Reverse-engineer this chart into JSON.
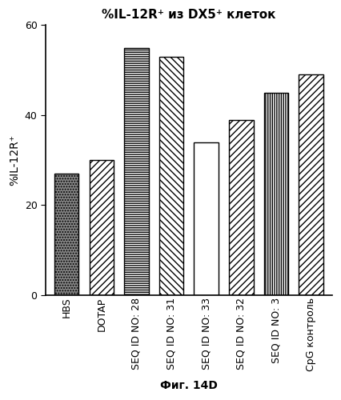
{
  "categories": [
    "HBS",
    "DOTAP",
    "SEQ ID NO: 28",
    "SEQ ID NO: 31",
    "SEQ ID NO: 33",
    "SEQ ID NO: 32",
    "SEQ ID NO: 3",
    "CpG контроль"
  ],
  "values": [
    27,
    30,
    55,
    53,
    34,
    39,
    45,
    49
  ],
  "title": "%IL-12R⁺ из DX5⁺ клеток",
  "ylabel": "%IL-12R⁺",
  "xlabel": "Фиг. 14D",
  "ylim": [
    0,
    60
  ],
  "yticks": [
    0,
    20,
    40,
    60
  ],
  "facecolors": [
    "#999999",
    "white",
    "white",
    "white",
    "white",
    "white",
    "white",
    "white"
  ],
  "hatches": [
    "..",
    "////",
    "----",
    "\\\\\\\\",
    "",
    "////",
    "||||",
    "////"
  ],
  "edgecolor": "black",
  "bar_width": 0.7,
  "title_fontsize": 11,
  "ylabel_fontsize": 10,
  "xlabel_fontsize": 10,
  "tick_fontsize": 9
}
